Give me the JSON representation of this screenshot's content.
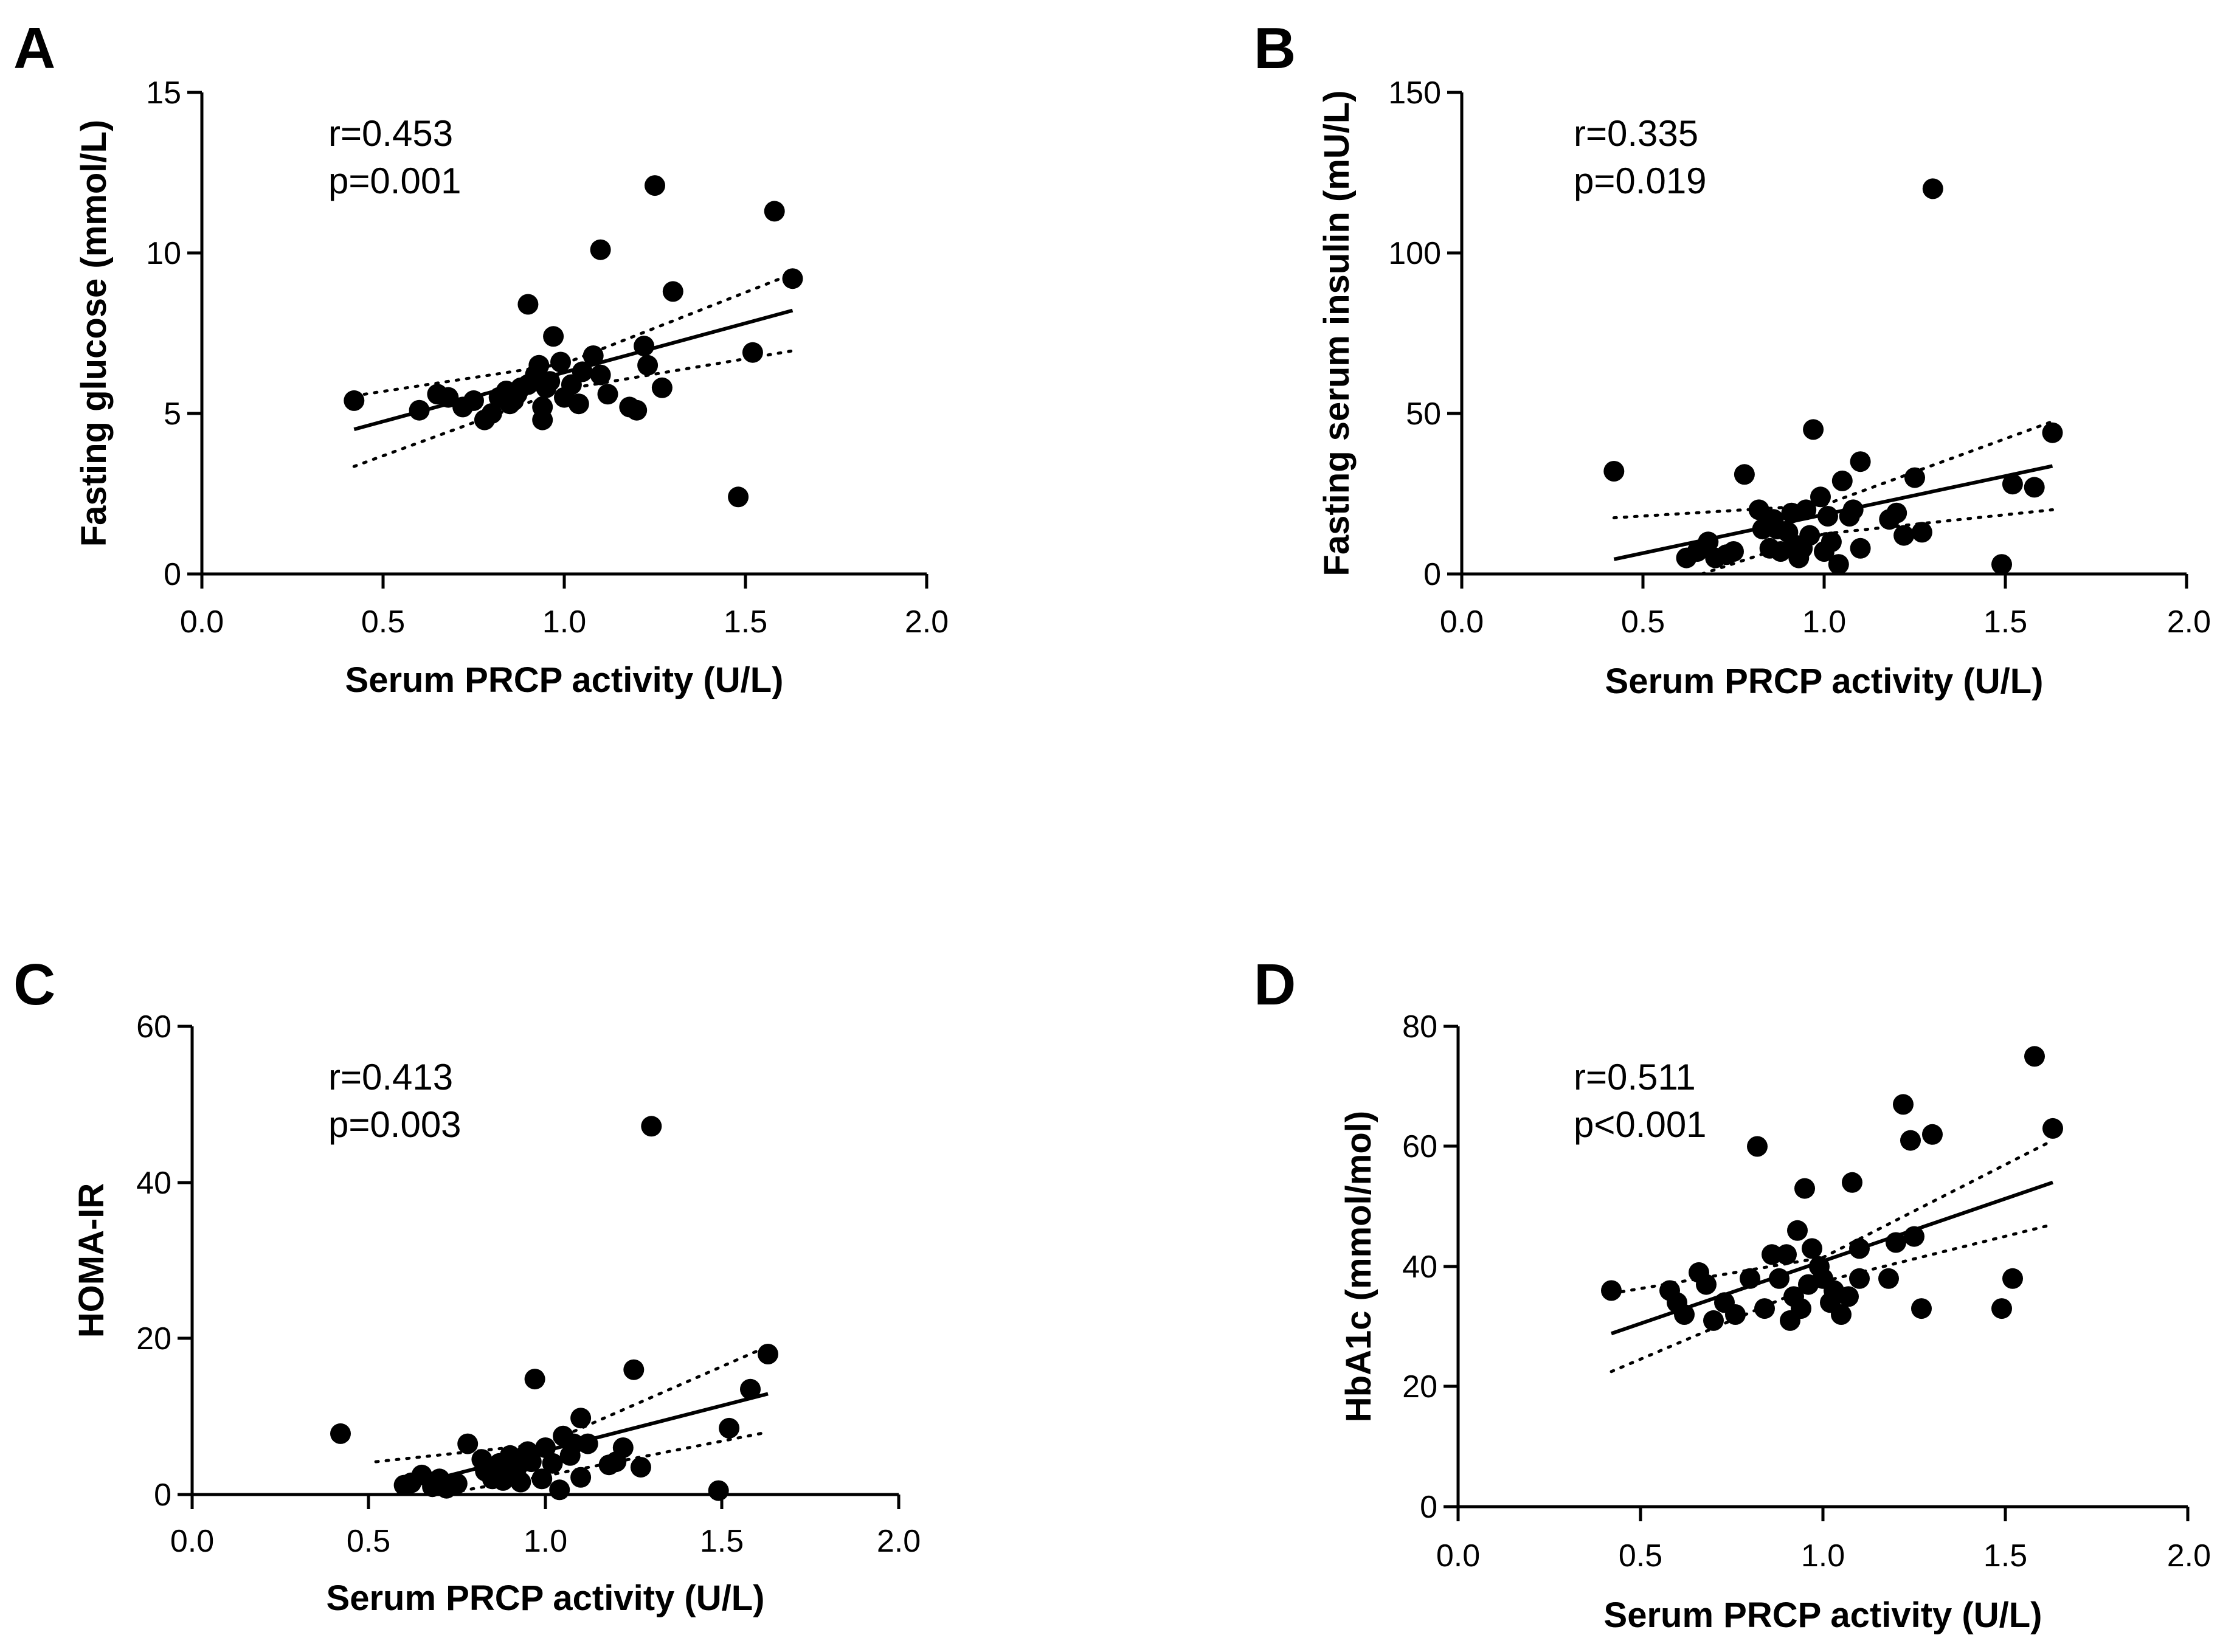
{
  "figure": {
    "panels": [
      {
        "letter": "A",
        "r_text": "r=0.453",
        "p_text": "p=0.001"
      },
      {
        "letter": "B",
        "r_text": "r=0.335",
        "p_text": "p=0.019"
      },
      {
        "letter": "C",
        "r_text": "r=0.413",
        "p_text": "p=0.003"
      },
      {
        "letter": "D",
        "r_text": "r=0.511",
        "p_text": "p<0.001"
      }
    ]
  },
  "chart_data": [
    {
      "type": "scatter",
      "panel": "A",
      "xlabel": "Serum PRCP activity (U/L)",
      "ylabel": "Fasting glucose (mmol/L)",
      "xlim": [
        0,
        2.0
      ],
      "ylim": [
        0,
        15
      ],
      "xticks": [
        "0.0",
        "0.5",
        "1.0",
        "1.5",
        "2.0"
      ],
      "yticks": [
        "0",
        "5",
        "10",
        "15"
      ],
      "x": [
        0.42,
        0.6,
        0.65,
        0.68,
        0.72,
        0.75,
        0.78,
        0.8,
        0.82,
        0.84,
        0.85,
        0.87,
        0.88,
        0.9,
        0.9,
        0.92,
        0.93,
        0.94,
        0.95,
        0.96,
        0.97,
        0.99,
        1.0,
        1.02,
        1.04,
        1.05,
        1.08,
        1.1,
        1.12,
        1.18,
        1.2,
        1.22,
        1.23,
        1.25,
        1.27,
        1.3,
        1.48,
        1.52,
        1.58,
        1.63,
        1.1,
        0.94,
        0.86
      ],
      "y": [
        5.4,
        5.1,
        5.6,
        5.5,
        5.2,
        5.4,
        4.8,
        5.0,
        5.5,
        5.7,
        5.3,
        5.6,
        5.8,
        8.4,
        5.9,
        6.2,
        6.5,
        4.8,
        5.8,
        6.0,
        7.4,
        6.6,
        5.5,
        5.9,
        5.3,
        6.3,
        6.8,
        10.1,
        5.6,
        5.2,
        5.1,
        7.1,
        6.5,
        12.1,
        5.8,
        8.8,
        2.4,
        6.9,
        11.3,
        9.2,
        6.2,
        5.2,
        5.4
      ],
      "fit": {
        "slope": 3.06,
        "intercept": 3.22,
        "x_range": [
          0.42,
          1.63
        ]
      },
      "ci": {
        "upper": [
          [
            0.42,
            5.55
          ],
          [
            1.0,
            6.55
          ],
          [
            1.63,
            9.35
          ]
        ],
        "lower": [
          [
            0.42,
            3.35
          ],
          [
            1.0,
            5.75
          ],
          [
            1.63,
            6.95
          ]
        ]
      }
    },
    {
      "type": "scatter",
      "panel": "B",
      "xlabel": "Serum PRCP activity (U/L)",
      "ylabel": "Fasting serum insulin (mU/L)",
      "xlim": [
        0,
        2.0
      ],
      "ylim": [
        0,
        150
      ],
      "xticks": [
        "0.0",
        "0.5",
        "1.0",
        "1.5",
        "2.0"
      ],
      "yticks": [
        "0",
        "50",
        "100",
        "150"
      ],
      "x": [
        0.42,
        0.62,
        0.65,
        0.68,
        0.7,
        0.73,
        0.75,
        0.78,
        0.82,
        0.83,
        0.85,
        0.86,
        0.88,
        0.9,
        0.91,
        0.93,
        0.94,
        0.95,
        0.96,
        0.97,
        0.99,
        1.0,
        1.01,
        1.02,
        1.04,
        1.05,
        1.07,
        1.08,
        1.1,
        1.1,
        1.18,
        1.2,
        1.22,
        1.25,
        1.27,
        1.3,
        1.49,
        1.52,
        1.58,
        1.63,
        0.87,
        0.92
      ],
      "y": [
        32,
        5,
        7,
        10,
        5,
        6,
        7,
        31,
        20,
        14,
        8,
        17,
        7,
        13,
        19,
        5,
        8,
        20,
        12,
        45,
        24,
        7,
        18,
        10,
        3,
        29,
        18,
        20,
        35,
        8,
        17,
        19,
        12,
        30,
        13,
        120,
        3,
        28,
        27,
        44,
        14,
        9
      ],
      "fit": {
        "slope": 24.0,
        "intercept": -5.5,
        "x_range": [
          0.42,
          1.63
        ]
      },
      "ci": {
        "upper": [
          [
            0.42,
            17.5
          ],
          [
            1.0,
            21.5
          ],
          [
            1.63,
            47.5
          ]
        ],
        "lower": [
          [
            0.42,
            -9.0
          ],
          [
            1.0,
            12.5
          ],
          [
            1.63,
            20.0
          ]
        ]
      }
    },
    {
      "type": "scatter",
      "panel": "C",
      "xlabel": "Serum PRCP activity (U/L)",
      "ylabel": "HOMA-IR",
      "xlim": [
        0,
        2.0
      ],
      "ylim": [
        0,
        60
      ],
      "xticks": [
        "0.0",
        "0.5",
        "1.0",
        "1.5",
        "2.0"
      ],
      "yticks": [
        "0",
        "20",
        "40",
        "60"
      ],
      "x": [
        0.42,
        0.6,
        0.62,
        0.65,
        0.68,
        0.7,
        0.72,
        0.75,
        0.78,
        0.82,
        0.83,
        0.85,
        0.87,
        0.88,
        0.9,
        0.92,
        0.93,
        0.95,
        0.97,
        0.99,
        1.0,
        1.02,
        1.04,
        1.05,
        1.07,
        1.08,
        1.1,
        1.1,
        1.12,
        1.18,
        1.2,
        1.22,
        1.25,
        1.27,
        1.3,
        1.49,
        1.52,
        1.58,
        1.63,
        0.91,
        0.96
      ],
      "y": [
        7.8,
        1.2,
        1.5,
        2.5,
        1.0,
        2.0,
        0.8,
        1.4,
        6.5,
        4.5,
        3.0,
        2.0,
        4.0,
        1.8,
        5.0,
        3.5,
        1.6,
        5.5,
        14.8,
        2.0,
        6.0,
        4.0,
        0.6,
        7.5,
        5.0,
        6.5,
        9.8,
        2.2,
        6.5,
        3.8,
        4.2,
        6.0,
        16.0,
        3.5,
        47.2,
        0.5,
        8.5,
        13.5,
        18.0,
        2.5,
        4.2
      ],
      "fit": {
        "slope": 11.6,
        "intercept": -6.0,
        "x_range": [
          0.58,
          1.63
        ]
      },
      "ci": {
        "upper": [
          [
            0.52,
            4.2
          ],
          [
            1.0,
            6.5
          ],
          [
            1.63,
            19.0
          ]
        ],
        "lower": [
          [
            0.58,
            -1.0
          ],
          [
            1.0,
            2.4
          ],
          [
            1.63,
            8.0
          ]
        ]
      }
    },
    {
      "type": "scatter",
      "panel": "D",
      "xlabel": "Serum PRCP activity (U/L)",
      "ylabel": "HbA1c (mmol/mol)",
      "xlim": [
        0,
        2.0
      ],
      "ylim": [
        0,
        80
      ],
      "xticks": [
        "0.0",
        "0.5",
        "1.0",
        "1.5",
        "2.0"
      ],
      "yticks": [
        "0",
        "20",
        "40",
        "60",
        "80"
      ],
      "x": [
        0.42,
        0.58,
        0.6,
        0.62,
        0.66,
        0.68,
        0.7,
        0.73,
        0.76,
        0.8,
        0.82,
        0.84,
        0.86,
        0.88,
        0.9,
        0.91,
        0.92,
        0.93,
        0.94,
        0.95,
        0.96,
        0.97,
        0.99,
        1.0,
        1.02,
        1.03,
        1.05,
        1.07,
        1.08,
        1.1,
        1.1,
        1.18,
        1.2,
        1.22,
        1.24,
        1.25,
        1.27,
        1.3,
        1.49,
        1.52,
        1.58,
        1.63
      ],
      "y": [
        36,
        36,
        34,
        32,
        39,
        37,
        31,
        34,
        32,
        38,
        60,
        33,
        42,
        38,
        42,
        31,
        35,
        46,
        33,
        53,
        37,
        43,
        40,
        38,
        34,
        36,
        32,
        35,
        54,
        38,
        43,
        38,
        44,
        67,
        61,
        45,
        33,
        62,
        33,
        38,
        75,
        63
      ],
      "fit": {
        "slope": 20.8,
        "intercept": 20.1,
        "x_range": [
          0.42,
          1.63
        ]
      },
      "ci": {
        "upper": [
          [
            0.42,
            35.5
          ],
          [
            1.0,
            41.5
          ],
          [
            1.63,
            61.0
          ]
        ],
        "lower": [
          [
            0.42,
            22.5
          ],
          [
            1.0,
            37.5
          ],
          [
            1.63,
            47.0
          ]
        ]
      }
    }
  ]
}
